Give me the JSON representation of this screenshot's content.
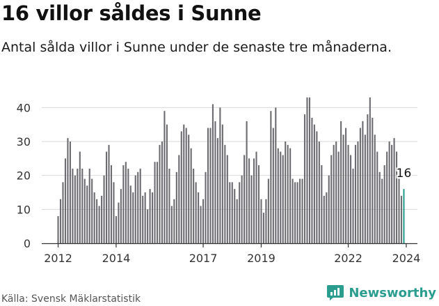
{
  "header": {
    "title": "16 villor såldes i Sunne",
    "subtitle": "Antal sålda villor i Sunne under de senaste tre månaderna."
  },
  "footer": {
    "source": "Källa: Svensk Mäklarstatistik",
    "brand": "Newsworthy"
  },
  "colors": {
    "bar": "#6b6b70",
    "highlight": "#2a9d8f",
    "grid": "#d9d9d9",
    "axis": "#333333",
    "brand": "#2a9d8f"
  },
  "chart_data": {
    "type": "bar",
    "title": "16 villor såldes i Sunne",
    "xlabel": "",
    "ylabel": "",
    "ylim": [
      0,
      45
    ],
    "yticks": [
      0,
      10,
      20,
      30,
      40
    ],
    "xtick_labels": [
      "2012",
      "2014",
      "2017",
      "2019",
      "2022",
      "2024"
    ],
    "xtick_positions": [
      0,
      24,
      60,
      84,
      120,
      144
    ],
    "highlight_label": "16",
    "grid": true,
    "values": [
      8,
      13,
      18,
      25,
      31,
      30,
      22,
      20,
      22,
      27,
      22,
      19,
      17,
      22,
      19,
      15,
      13,
      11,
      14,
      20,
      27,
      29,
      23,
      18,
      8,
      12,
      16,
      23,
      24,
      22,
      17,
      15,
      20,
      21,
      22,
      14,
      15,
      10,
      16,
      15,
      24,
      24,
      29,
      30,
      39,
      35,
      22,
      11,
      13,
      21,
      26,
      33,
      35,
      34,
      32,
      28,
      22,
      18,
      15,
      11,
      13,
      21,
      34,
      34,
      41,
      36,
      31,
      40,
      35,
      29,
      26,
      18,
      18,
      16,
      13,
      18,
      20,
      26,
      36,
      25,
      20,
      25,
      27,
      23,
      13,
      9,
      13,
      19,
      39,
      34,
      40,
      28,
      27,
      26,
      30,
      29,
      28,
      19,
      18,
      18,
      19,
      19,
      38,
      43,
      43,
      37,
      35,
      33,
      30,
      23,
      14,
      15,
      20,
      26,
      29,
      30,
      27,
      36,
      32,
      34,
      29,
      26,
      22,
      29,
      30,
      34,
      36,
      32,
      38,
      43,
      37,
      32,
      27,
      21,
      19,
      23,
      27,
      30,
      29,
      31,
      27,
      19,
      14,
      16
    ]
  }
}
